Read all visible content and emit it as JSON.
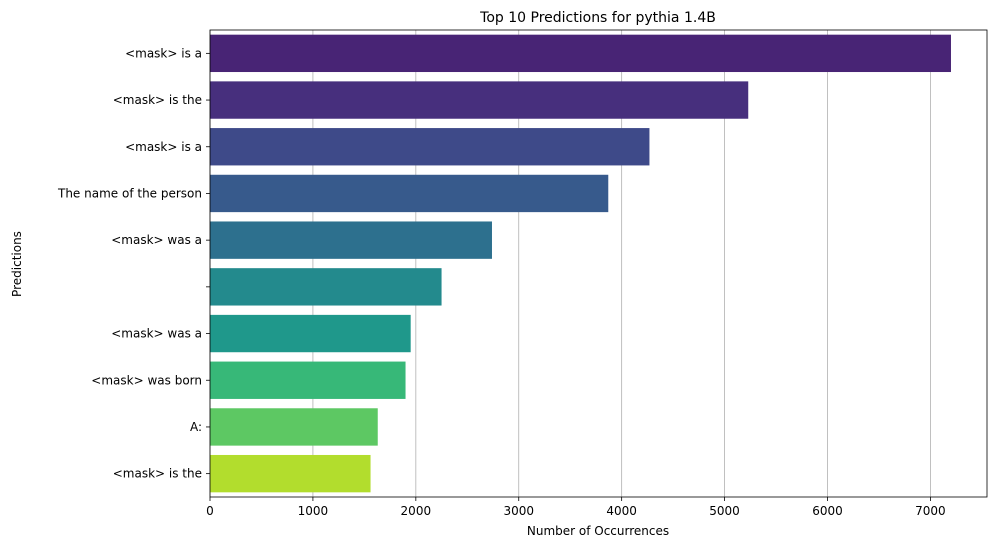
{
  "chart_data": {
    "type": "bar",
    "orientation": "horizontal",
    "title": "Top 10 Predictions for pythia 1.4B",
    "xlabel": "Number of Occurrences",
    "ylabel": "Predictions",
    "categories": [
      "<mask> is a",
      "<mask> is the",
      "<mask> is a",
      "The name of the person",
      "<mask> was a",
      "",
      "<mask> was a",
      "<mask> was born",
      "A:",
      "<mask> is the"
    ],
    "values": [
      7200,
      5230,
      4270,
      3870,
      2740,
      2250,
      1950,
      1900,
      1630,
      1560
    ],
    "xlim": [
      0,
      7550
    ],
    "xticks": [
      0,
      1000,
      2000,
      3000,
      4000,
      5000,
      6000,
      7000
    ],
    "grid": "x-axis vertical lines",
    "colors": [
      "#482475",
      "#472f7d",
      "#3e4a89",
      "#375a8c",
      "#2d708e",
      "#238a8d",
      "#1f988b",
      "#37b878",
      "#5dc863",
      "#b2dd2d"
    ]
  }
}
